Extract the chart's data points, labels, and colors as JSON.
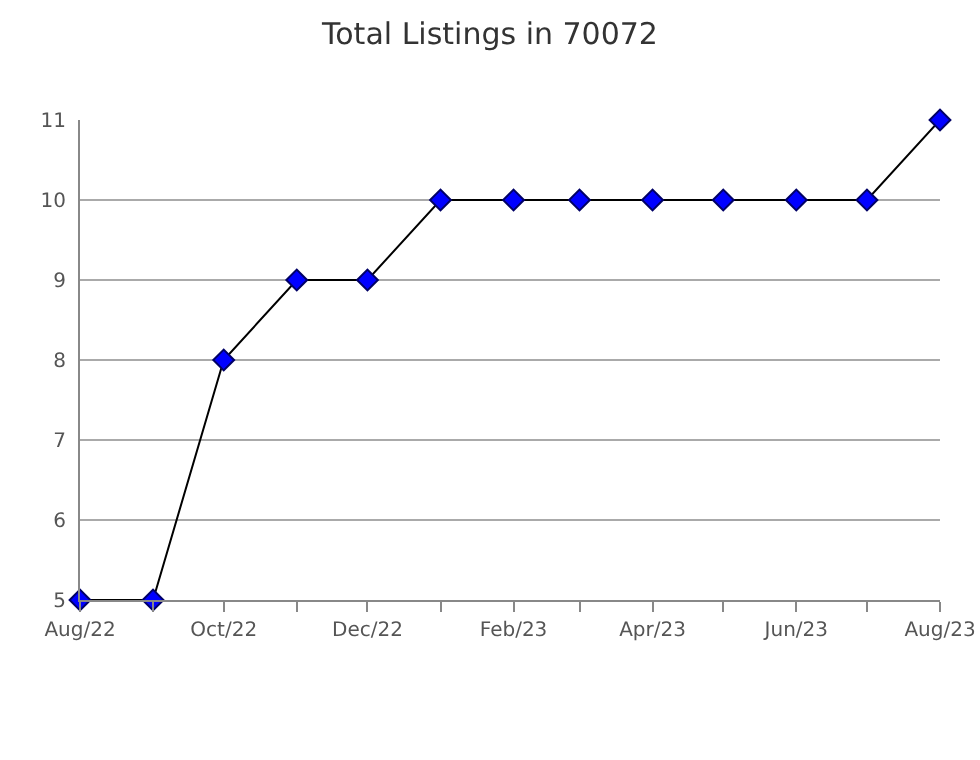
{
  "chart_data": {
    "type": "line",
    "title": "Total Listings in 70072",
    "x": [
      "2022-08",
      "2022-09",
      "2022-10",
      "2022-11",
      "2022-12",
      "2023-01",
      "2023-02",
      "2023-03",
      "2023-04",
      "2023-05",
      "2023-06",
      "2023-07",
      "2023-08"
    ],
    "series": [
      {
        "color": "#0000ff",
        "values": [
          5,
          5,
          8,
          9,
          9,
          10,
          10,
          10,
          10,
          10,
          10,
          10,
          11
        ]
      }
    ],
    "xlim": [
      "2022-08",
      "2023-08"
    ],
    "xticks": [
      {
        "value": "2022-08",
        "label": "Aug/22"
      },
      {
        "value": "2022-09",
        "label": null
      },
      {
        "value": "2022-10",
        "label": "Oct/22"
      },
      {
        "value": "2022-11",
        "label": null
      },
      {
        "value": "2022-12",
        "label": "Dec/22"
      },
      {
        "value": "2023-01",
        "label": null
      },
      {
        "value": "2023-02",
        "label": "Feb/23"
      },
      {
        "value": "2023-03",
        "label": null
      },
      {
        "value": "2023-04",
        "label": "Apr/23"
      },
      {
        "value": "2023-05",
        "label": null
      },
      {
        "value": "2023-06",
        "label": "Jun/23"
      },
      {
        "value": "2023-07",
        "label": null
      },
      {
        "value": "2023-08",
        "label": "Aug/23"
      }
    ],
    "ylim": [
      5,
      11
    ],
    "yticks": [
      5,
      6,
      7,
      8,
      9,
      10,
      11
    ],
    "grid": "y",
    "marker": "diamond",
    "line_style": "solid",
    "legend": false
  }
}
